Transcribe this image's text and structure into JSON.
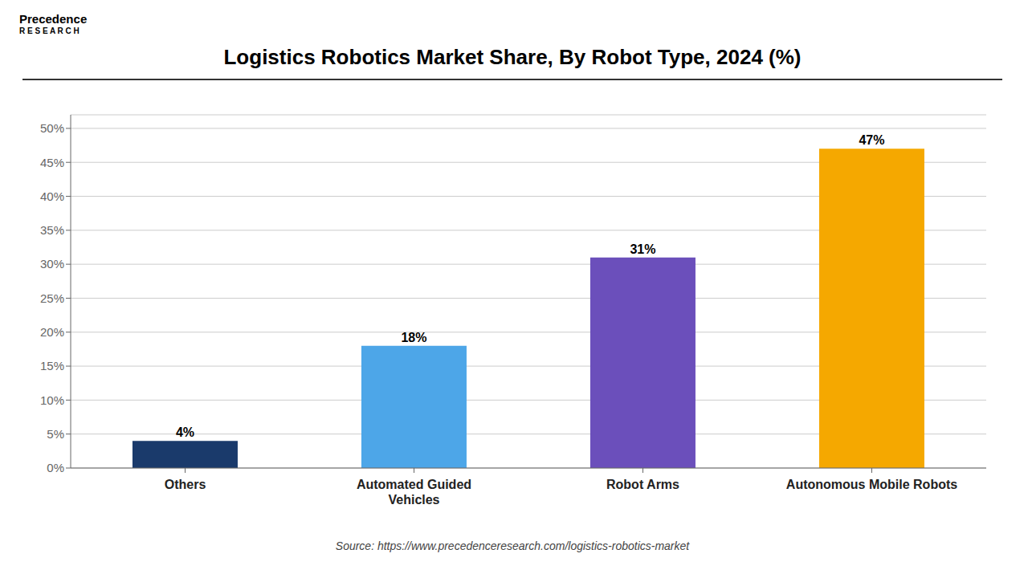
{
  "chart_data": {
    "type": "bar",
    "title": "Logistics Robotics Market Share, By Robot Type, 2024 (%)",
    "categories": [
      "Others",
      "Automated Guided\nVehicles",
      "Robot Arms",
      "Autonomous Mobile Robots"
    ],
    "values": [
      4,
      18,
      31,
      47
    ],
    "value_labels": [
      "4%",
      "18%",
      "31%",
      "47%"
    ],
    "data_labels": true,
    "colors": [
      "#1a3a6b",
      "#4da6e8",
      "#6b4fbb",
      "#f5a800"
    ],
    "ylim": [
      0,
      52
    ],
    "yticks": [
      {
        "value": 0,
        "label": "0%"
      },
      {
        "value": 5,
        "label": "5%"
      },
      {
        "value": 10,
        "label": "10%"
      },
      {
        "value": 15,
        "label": "15%"
      },
      {
        "value": 20,
        "label": "20%"
      },
      {
        "value": 25,
        "label": "25%"
      },
      {
        "value": 30,
        "label": "30%"
      },
      {
        "value": 35,
        "label": "35%"
      },
      {
        "value": 40,
        "label": "40%"
      },
      {
        "value": 45,
        "label": "45%"
      },
      {
        "value": 50,
        "label": "50%"
      }
    ],
    "grid": true,
    "annotations": [
      "Source: https://www.precedenceresearch.com/logistics-robotics-market",
      "Precedence",
      "R E S E A R C H"
    ]
  }
}
